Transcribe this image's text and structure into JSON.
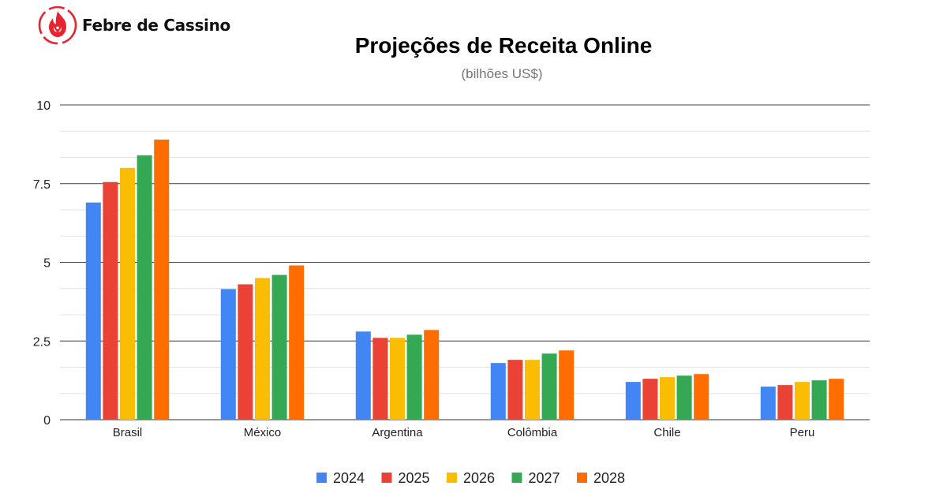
{
  "brand": {
    "name": "Febre de Cassino",
    "logo_icon": "flame-map-pin-icon",
    "logo_color": "#e8222e"
  },
  "chart_data": {
    "type": "bar",
    "title": "Projeções de Receita Online",
    "subtitle": "(bilhões US$)",
    "xlabel": "",
    "ylabel": "",
    "categories": [
      "Brasil",
      "México",
      "Argentina",
      "Colômbia",
      "Chile",
      "Peru"
    ],
    "series": [
      {
        "name": "2024",
        "color": "#4285f4",
        "values": [
          6.9,
          4.15,
          2.8,
          1.8,
          1.2,
          1.05
        ]
      },
      {
        "name": "2025",
        "color": "#ea4335",
        "values": [
          7.55,
          4.3,
          2.6,
          1.9,
          1.3,
          1.1
        ]
      },
      {
        "name": "2026",
        "color": "#fbbc04",
        "values": [
          8.0,
          4.5,
          2.6,
          1.9,
          1.35,
          1.2
        ]
      },
      {
        "name": "2027",
        "color": "#34a853",
        "values": [
          8.4,
          4.6,
          2.7,
          2.1,
          1.4,
          1.25
        ]
      },
      {
        "name": "2028",
        "color": "#ff6d01",
        "values": [
          8.9,
          4.9,
          2.85,
          2.2,
          1.45,
          1.3
        ]
      }
    ],
    "ylim": [
      0,
      10
    ],
    "yticks": [
      {
        "value": 0,
        "label": "0"
      },
      {
        "value": 2.5,
        "label": "2.5"
      },
      {
        "value": 5,
        "label": "5"
      },
      {
        "value": 7.5,
        "label": "7.5"
      },
      {
        "value": 10,
        "label": "10"
      }
    ],
    "minor_grid_step": 0.8333,
    "grid": true,
    "legend_position": "bottom"
  }
}
